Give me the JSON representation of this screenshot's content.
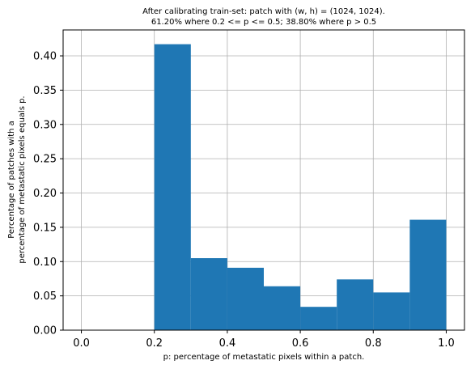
{
  "chart_data": {
    "type": "bar",
    "title_lines": [
      "After calibrating train-set: patch with (w, h) = (1024, 1024).",
      "61.20% where 0.2 <= p <= 0.5; 38.80% where p > 0.5"
    ],
    "xlabel": "p: percentage of metastatic pixels within a patch.",
    "ylabel_lines": [
      "Percentage of patches with a",
      "percentage of metastatic pixels equals p."
    ],
    "bins": [
      {
        "x0": 0.0,
        "x1": 0.1,
        "value": 0.0
      },
      {
        "x0": 0.1,
        "x1": 0.2,
        "value": 0.0
      },
      {
        "x0": 0.2,
        "x1": 0.3,
        "value": 0.417
      },
      {
        "x0": 0.3,
        "x1": 0.4,
        "value": 0.105
      },
      {
        "x0": 0.4,
        "x1": 0.5,
        "value": 0.091
      },
      {
        "x0": 0.5,
        "x1": 0.6,
        "value": 0.064
      },
      {
        "x0": 0.6,
        "x1": 0.7,
        "value": 0.034
      },
      {
        "x0": 0.7,
        "x1": 0.8,
        "value": 0.074
      },
      {
        "x0": 0.8,
        "x1": 0.9,
        "value": 0.055
      },
      {
        "x0": 0.9,
        "x1": 1.0,
        "value": 0.161
      }
    ],
    "xlim": [
      -0.05,
      1.05
    ],
    "ylim": [
      0,
      0.4378
    ],
    "xticks": [
      0.0,
      0.2,
      0.4,
      0.6,
      0.8,
      1.0
    ],
    "xtick_labels": [
      "0.0",
      "0.2",
      "0.4",
      "0.6",
      "0.8",
      "1.0"
    ],
    "yticks": [
      0.0,
      0.05,
      0.1,
      0.15,
      0.2,
      0.25,
      0.3,
      0.35,
      0.4
    ],
    "ytick_labels": [
      "0.00",
      "0.05",
      "0.10",
      "0.15",
      "0.20",
      "0.25",
      "0.30",
      "0.35",
      "0.40"
    ],
    "grid": true,
    "bar_color": "#1f77b4",
    "grid_color": "#b0b0b0"
  }
}
